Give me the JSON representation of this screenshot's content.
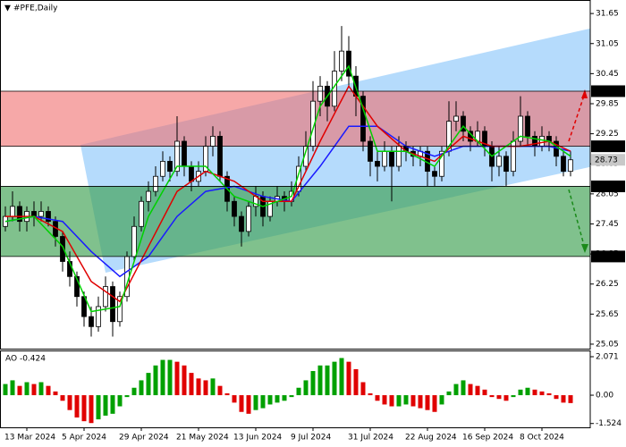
{
  "chart_data": [
    {
      "type": "candlestick",
      "title": "#PFE,Daily",
      "categories": [
        null,
        null,
        null,
        "13 Mar 2024",
        null,
        null,
        null,
        null,
        null,
        null,
        null,
        "5 Apr 2024",
        null,
        null,
        null,
        null,
        null,
        null,
        null,
        "29 Apr 2024",
        null,
        null,
        null,
        null,
        null,
        null,
        null,
        "21 May 2024",
        null,
        null,
        null,
        null,
        null,
        null,
        null,
        "13 Jun 2024",
        null,
        null,
        null,
        null,
        null,
        null,
        null,
        "9 Jul 2024",
        null,
        null,
        null,
        null,
        null,
        null,
        null,
        "31 Jul 2024",
        null,
        null,
        null,
        null,
        null,
        null,
        null,
        "22 Aug 2024",
        null,
        null,
        null,
        null,
        null,
        null,
        null,
        "16 Sep 2024",
        null,
        null,
        null,
        null,
        null,
        null,
        null,
        "8 Oct 2024",
        null,
        null,
        null,
        null
      ],
      "open": [
        27.4,
        27.6,
        27.8,
        27.5,
        27.7,
        27.6,
        27.7,
        27.5,
        27.2,
        26.7,
        26.4,
        26.0,
        25.6,
        25.4,
        25.8,
        26.2,
        25.5,
        26.0,
        26.8,
        27.4,
        27.9,
        28.1,
        28.4,
        28.7,
        28.5,
        29.1,
        28.6,
        28.3,
        28.5,
        29.0,
        29.2,
        28.4,
        27.9,
        27.6,
        27.3,
        27.8,
        28.0,
        27.6,
        27.9,
        28.0,
        27.9,
        28.1,
        28.6,
        29.0,
        29.9,
        30.2,
        29.8,
        30.5,
        30.9,
        30.4,
        30.0,
        29.1,
        28.7,
        28.6,
        28.9,
        28.6,
        29.0,
        28.9,
        28.8,
        28.9,
        28.5,
        28.4,
        28.9,
        29.5,
        29.6,
        29.3,
        29.1,
        29.3,
        29.0,
        28.6,
        28.8,
        28.5,
        29.1,
        29.6,
        29.2,
        29.0,
        29.2,
        29.1,
        28.8,
        28.5
      ],
      "high": [
        27.8,
        28.1,
        27.9,
        27.8,
        27.9,
        27.9,
        27.8,
        27.6,
        27.3,
        26.9,
        26.5,
        26.1,
        25.8,
        26.0,
        26.4,
        26.3,
        26.1,
        26.9,
        27.6,
        28.0,
        28.3,
        28.6,
        28.9,
        28.8,
        29.6,
        29.2,
        28.7,
        28.7,
        29.2,
        29.4,
        29.3,
        28.5,
        28.0,
        27.7,
        27.9,
        28.2,
        28.1,
        28.0,
        28.2,
        28.1,
        28.3,
        28.8,
        29.3,
        30.3,
        30.4,
        30.3,
        30.9,
        31.4,
        31.2,
        30.6,
        30.1,
        29.2,
        28.9,
        29.1,
        29.0,
        29.2,
        29.1,
        29.0,
        29.0,
        29.0,
        28.6,
        29.0,
        29.9,
        29.9,
        29.7,
        29.4,
        29.5,
        29.4,
        29.1,
        29.0,
        28.9,
        29.3,
        30.0,
        29.7,
        29.3,
        29.4,
        29.3,
        29.2,
        28.9,
        28.9
      ],
      "low": [
        27.3,
        27.5,
        27.3,
        27.3,
        27.4,
        27.5,
        27.4,
        27.0,
        26.5,
        26.2,
        25.8,
        25.4,
        25.2,
        25.3,
        25.7,
        25.2,
        25.4,
        25.9,
        26.7,
        27.3,
        27.7,
        28.0,
        28.3,
        28.3,
        28.4,
        28.4,
        28.1,
        28.2,
        28.4,
        28.8,
        28.3,
        27.7,
        27.4,
        27.0,
        27.2,
        27.6,
        27.4,
        27.5,
        27.8,
        27.7,
        27.8,
        28.0,
        28.5,
        28.9,
        29.6,
        29.5,
        29.7,
        30.3,
        30.2,
        29.6,
        28.9,
        28.4,
        28.3,
        28.5,
        27.9,
        28.5,
        28.7,
        28.6,
        28.6,
        28.2,
        28.2,
        28.3,
        28.8,
        29.3,
        29.1,
        28.9,
        29.0,
        28.8,
        28.3,
        28.4,
        28.2,
        28.4,
        29.0,
        29.0,
        28.8,
        28.9,
        28.9,
        28.6,
        28.4,
        28.4
      ],
      "close": [
        27.6,
        27.8,
        27.5,
        27.7,
        27.6,
        27.7,
        27.5,
        27.2,
        26.7,
        26.4,
        26.0,
        25.6,
        25.4,
        25.8,
        26.2,
        25.5,
        26.0,
        26.8,
        27.4,
        27.9,
        28.1,
        28.4,
        28.7,
        28.5,
        29.1,
        28.6,
        28.3,
        28.5,
        29.0,
        29.2,
        28.4,
        27.9,
        27.6,
        27.3,
        27.8,
        28.0,
        27.6,
        27.9,
        28.0,
        27.9,
        28.1,
        28.6,
        29.0,
        29.9,
        30.2,
        29.8,
        30.5,
        30.9,
        30.4,
        30.0,
        29.1,
        28.7,
        28.6,
        28.9,
        28.6,
        29.0,
        28.9,
        28.8,
        28.9,
        28.5,
        28.4,
        28.9,
        29.5,
        29.6,
        29.3,
        29.1,
        29.3,
        29.0,
        28.6,
        28.8,
        28.5,
        29.1,
        29.6,
        29.2,
        29.0,
        29.2,
        29.1,
        28.8,
        28.5,
        28.73
      ],
      "up_color": "#ffffff",
      "down_color": "#000000",
      "wick_color": "#000000",
      "series": [
        {
          "color": "#1a1aff",
          "x": [
            0,
            4,
            8,
            12,
            16,
            20,
            24,
            28,
            32,
            36,
            40,
            44,
            48,
            52,
            56,
            60,
            64,
            68,
            72,
            76,
            79
          ],
          "values": [
            27.5,
            27.6,
            27.5,
            26.9,
            26.4,
            26.8,
            27.6,
            28.1,
            28.2,
            28.0,
            27.9,
            28.6,
            29.4,
            29.4,
            29.0,
            28.8,
            29.0,
            29.0,
            29.0,
            29.0,
            28.9
          ]
        },
        {
          "color": "#e00000",
          "x": [
            0,
            4,
            8,
            12,
            16,
            20,
            24,
            28,
            32,
            36,
            40,
            44,
            48,
            52,
            56,
            60,
            64,
            68,
            72,
            76,
            79
          ],
          "values": [
            27.6,
            27.6,
            27.3,
            26.3,
            25.9,
            27.0,
            28.1,
            28.5,
            28.3,
            27.9,
            27.9,
            29.1,
            30.2,
            29.4,
            28.9,
            28.7,
            29.2,
            29.0,
            29.0,
            29.1,
            28.9
          ]
        },
        {
          "color": "#00d000",
          "x": [
            0,
            4,
            8,
            12,
            16,
            20,
            24,
            28,
            32,
            36,
            40,
            44,
            48,
            52,
            56,
            60,
            64,
            68,
            72,
            76,
            79
          ],
          "values": [
            27.5,
            27.6,
            27.0,
            25.7,
            25.8,
            27.6,
            28.6,
            28.6,
            28.0,
            27.8,
            28.0,
            29.8,
            30.6,
            28.9,
            28.9,
            28.6,
            29.4,
            28.8,
            29.2,
            29.1,
            28.8
          ]
        }
      ],
      "zones": [
        {
          "top": {
            "value": 30.1,
            "label": "30.10"
          },
          "bottom": {
            "value": 29.0,
            "label": "29.00"
          },
          "color": "rgba(240,110,110,0.6)"
        },
        {
          "top": {
            "value": 28.2,
            "label": "28.20"
          },
          "bottom": {
            "value": 26.8,
            "label": "26.80"
          },
          "color": "rgba(60,160,80,0.65)"
        }
      ],
      "last_price": {
        "value": 28.73,
        "label": "28.73"
      },
      "ylim": [
        24.96,
        31.92
      ],
      "yticks": [
        31.65,
        {
          "value": 31.05,
          "label": "31.05"
        },
        30.45,
        29.85,
        29.25,
        28.65,
        28.05,
        27.45,
        26.85,
        26.25,
        25.65,
        25.05
      ]
    },
    {
      "type": "bar",
      "title": "AO -0.424",
      "values": [
        0.6,
        0.8,
        0.5,
        0.7,
        0.6,
        0.7,
        0.5,
        0.2,
        -0.3,
        -0.8,
        -1.2,
        -1.4,
        -1.5,
        -1.3,
        -1.1,
        -1.0,
        -0.6,
        -0.1,
        0.4,
        0.8,
        1.2,
        1.6,
        1.9,
        1.9,
        1.8,
        1.6,
        1.2,
        0.9,
        0.8,
        0.9,
        0.5,
        0.1,
        -0.4,
        -0.9,
        -1.0,
        -0.8,
        -0.7,
        -0.5,
        -0.4,
        -0.3,
        -0.1,
        0.4,
        0.8,
        1.3,
        1.6,
        1.6,
        1.8,
        2.0,
        1.8,
        1.4,
        0.7,
        0.1,
        -0.3,
        -0.5,
        -0.6,
        -0.6,
        -0.5,
        -0.6,
        -0.7,
        -0.8,
        -0.9,
        -0.5,
        0.2,
        0.6,
        0.8,
        0.6,
        0.5,
        0.3,
        -0.1,
        -0.2,
        -0.3,
        -0.1,
        0.3,
        0.4,
        0.3,
        0.2,
        0.1,
        -0.2,
        -0.4,
        -0.424
      ],
      "up_color": "#00a000",
      "down_color": "#e00000",
      "ylim": [
        -1.73,
        2.36
      ],
      "yticks": [
        2.071,
        {
          "value": 0,
          "label": "0.00"
        },
        -1.524
      ]
    }
  ]
}
